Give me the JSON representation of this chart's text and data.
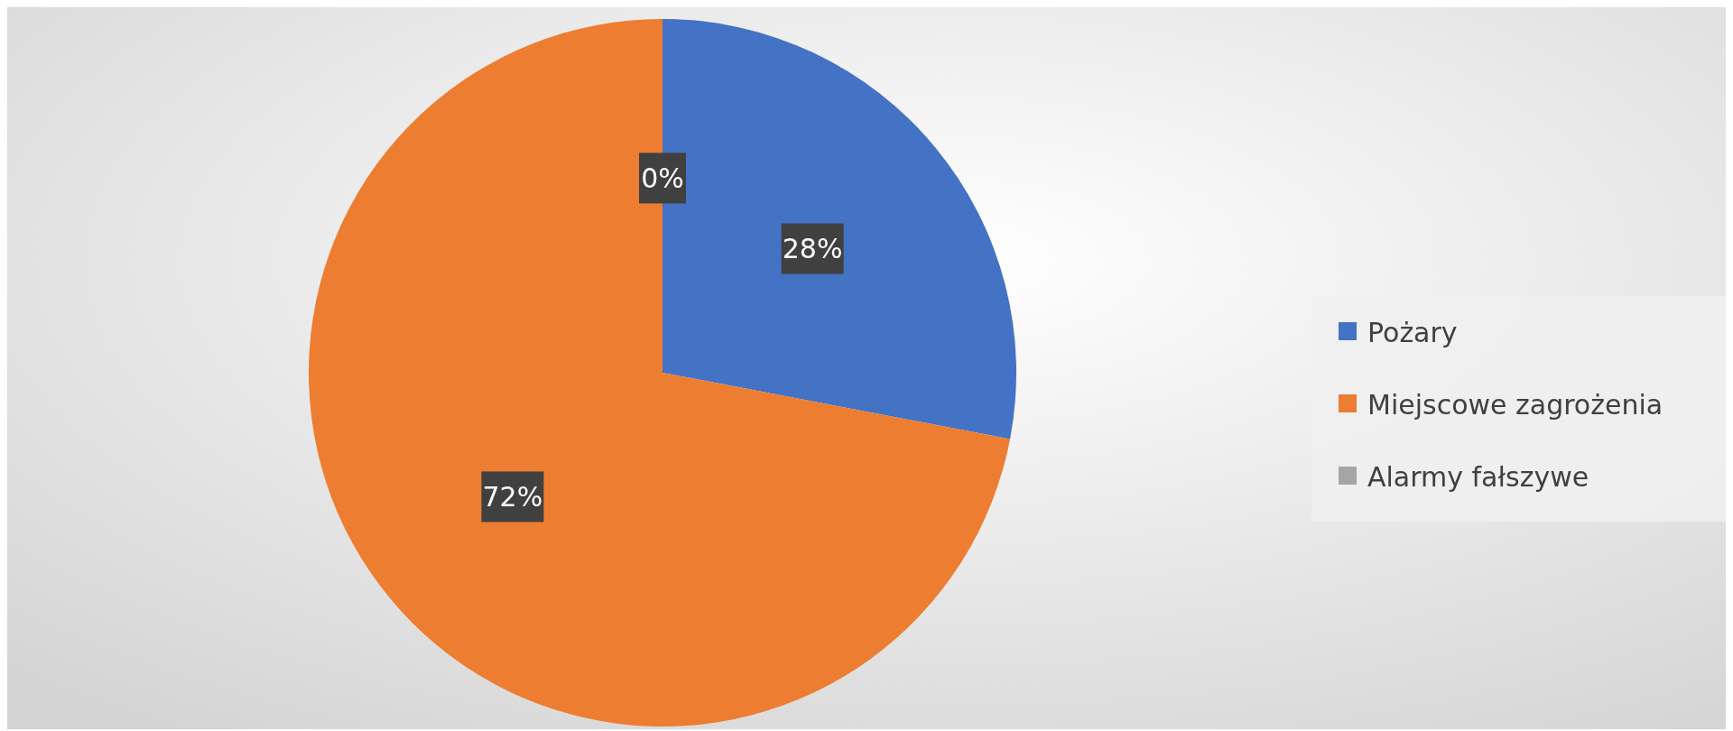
{
  "chart_data": {
    "type": "pie",
    "categories": [
      "Pożary",
      "Miejscowe zagrożenia",
      "Alarmy fałszywe"
    ],
    "values": [
      28,
      72,
      0
    ],
    "colors": [
      "#4472c4",
      "#ed7d31",
      "#a5a5a5"
    ],
    "value_labels": [
      "28%",
      "72%",
      "0%"
    ],
    "legend": "right"
  }
}
